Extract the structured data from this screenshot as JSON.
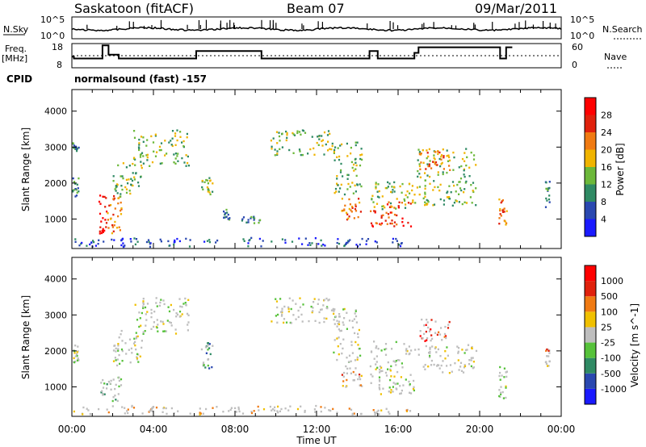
{
  "header": {
    "station": "Saskatoon (fitACF)",
    "beam": "Beam 07",
    "date": "09/Mar/2011"
  },
  "nsky_panel": {
    "left_label": "N.Sky",
    "right_label": "N.Search",
    "left_ticks": [
      "10^5",
      "10^0"
    ],
    "right_ticks": [
      "10^5",
      "10^0"
    ]
  },
  "freq_panel": {
    "left_label_1": "Freq.",
    "left_label_2": "[MHz]",
    "right_label": "Nave",
    "left_ticks": [
      "18",
      "8"
    ],
    "right_ticks": [
      "60",
      "0"
    ]
  },
  "cpid": {
    "label": "CPID",
    "value": "normalsound (fast) -157"
  },
  "chart_data": [
    {
      "type": "heatmap",
      "ylabel": "Slant Range [km]",
      "xlabel": "Time UT",
      "xticks": [
        "00:00",
        "04:00",
        "08:00",
        "12:00",
        "16:00",
        "20:00",
        "00:00"
      ],
      "yticks": [
        "1000",
        "2000",
        "3000",
        "4000"
      ],
      "ylim": [
        180,
        4600
      ],
      "colorbar": {
        "label": "Power [dB]",
        "ticks": [
          "4",
          "8",
          "12",
          "16",
          "20",
          "24",
          "28"
        ],
        "range": [
          0,
          32
        ],
        "colors": [
          "#1a1aff",
          "#2a48b0",
          "#2f8a64",
          "#6cb83a",
          "#f0b400",
          "#f07a12",
          "#e0210c",
          "#ff0000"
        ]
      },
      "echo_regions_hours_km": [
        {
          "t": [
            0.0,
            0.3
          ],
          "r": [
            2900,
            3150
          ],
          "level": 2
        },
        {
          "t": [
            0.0,
            0.3
          ],
          "r": [
            1600,
            2200
          ],
          "level": 2
        },
        {
          "t": [
            1.3,
            1.7
          ],
          "r": [
            600,
            1800
          ],
          "level": 7
        },
        {
          "t": [
            1.7,
            2.4
          ],
          "r": [
            600,
            1700
          ],
          "level": 5
        },
        {
          "t": [
            2.0,
            3.4
          ],
          "r": [
            1600,
            2600
          ],
          "level": 3
        },
        {
          "t": [
            3.0,
            5.7
          ],
          "r": [
            2500,
            3500
          ],
          "level": 3
        },
        {
          "t": [
            6.3,
            6.9
          ],
          "r": [
            1700,
            2200
          ],
          "level": 3
        },
        {
          "t": [
            7.4,
            7.7
          ],
          "r": [
            1000,
            1300
          ],
          "level": 2
        },
        {
          "t": [
            8.3,
            9.2
          ],
          "r": [
            900,
            1100
          ],
          "level": 2
        },
        {
          "t": [
            9.7,
            12.8
          ],
          "r": [
            2800,
            3500
          ],
          "level": 3
        },
        {
          "t": [
            12.8,
            14.2
          ],
          "r": [
            1700,
            3200
          ],
          "level": 3
        },
        {
          "t": [
            13.2,
            14.2
          ],
          "r": [
            1000,
            1600
          ],
          "level": 5
        },
        {
          "t": [
            14.6,
            16.6
          ],
          "r": [
            800,
            1500
          ],
          "level": 6
        },
        {
          "t": [
            14.6,
            16.8
          ],
          "r": [
            1300,
            2100
          ],
          "level": 3
        },
        {
          "t": [
            16.9,
            19.8
          ],
          "r": [
            1400,
            3000
          ],
          "level": 3
        },
        {
          "t": [
            17.0,
            18.5
          ],
          "r": [
            2300,
            2900
          ],
          "level": 5
        },
        {
          "t": [
            20.9,
            21.3
          ],
          "r": [
            800,
            1600
          ],
          "level": 5
        },
        {
          "t": [
            23.2,
            23.4
          ],
          "r": [
            1300,
            2100
          ],
          "level": 2
        },
        {
          "t": [
            0.0,
            16.6
          ],
          "r": [
            250,
            500
          ],
          "level": 1
        }
      ]
    },
    {
      "type": "heatmap",
      "ylabel": "Slant Range [km]",
      "xlabel": "Time UT",
      "xticks": [
        "00:00",
        "04:00",
        "08:00",
        "12:00",
        "16:00",
        "20:00",
        "00:00"
      ],
      "yticks": [
        "1000",
        "2000",
        "3000",
        "4000"
      ],
      "ylim": [
        180,
        4600
      ],
      "colorbar": {
        "label": "Velocity [m s^-1]",
        "ticks": [
          "1000",
          "500",
          "100",
          "25",
          "-25",
          "-100",
          "-500",
          "-1000"
        ],
        "colors": [
          "#1a1aff",
          "#2a48b0",
          "#2f8a64",
          "#56c23a",
          "#bebebe",
          "#f0c000",
          "#f07a12",
          "#e0210c",
          "#ff0000"
        ]
      },
      "echo_regions_hours_km": [
        {
          "t": [
            0.0,
            0.3
          ],
          "r": [
            1600,
            2200
          ],
          "level": 4
        },
        {
          "t": [
            1.3,
            2.4
          ],
          "r": [
            600,
            1300
          ],
          "level": 3
        },
        {
          "t": [
            2.0,
            3.4
          ],
          "r": [
            1600,
            2600
          ],
          "level": 4
        },
        {
          "t": [
            3.0,
            5.7
          ],
          "r": [
            2500,
            3500
          ],
          "level": 4
        },
        {
          "t": [
            6.3,
            6.9
          ],
          "r": [
            1500,
            2300
          ],
          "level": 2
        },
        {
          "t": [
            9.7,
            12.8
          ],
          "r": [
            2800,
            3500
          ],
          "level": 4
        },
        {
          "t": [
            12.8,
            14.2
          ],
          "r": [
            1700,
            3200
          ],
          "level": 4
        },
        {
          "t": [
            13.2,
            14.2
          ],
          "r": [
            1000,
            1600
          ],
          "level": 6
        },
        {
          "t": [
            14.6,
            16.8
          ],
          "r": [
            800,
            2300
          ],
          "level": 4
        },
        {
          "t": [
            16.9,
            19.8
          ],
          "r": [
            1400,
            2200
          ],
          "level": 4
        },
        {
          "t": [
            17.0,
            18.6
          ],
          "r": [
            2300,
            2900
          ],
          "level": 7
        },
        {
          "t": [
            20.9,
            21.3
          ],
          "r": [
            700,
            1600
          ],
          "level": 4
        },
        {
          "t": [
            23.2,
            23.4
          ],
          "r": [
            1500,
            2100
          ],
          "level": 6
        },
        {
          "t": [
            0.0,
            16.6
          ],
          "r": [
            250,
            500
          ],
          "level": 5
        }
      ]
    }
  ],
  "freq_steps_hours_mhz": [
    {
      "t": [
        0.0,
        0.1
      ],
      "f": 12
    },
    {
      "t": [
        0.1,
        1.5
      ],
      "f": 11
    },
    {
      "t": [
        1.5,
        1.8
      ],
      "f": 18
    },
    {
      "t": [
        1.8,
        2.3
      ],
      "f": 13
    },
    {
      "t": [
        2.3,
        6.1
      ],
      "f": 11
    },
    {
      "t": [
        6.1,
        9.3
      ],
      "f": 15
    },
    {
      "t": [
        9.3,
        14.6
      ],
      "f": 11
    },
    {
      "t": [
        14.6,
        15.0
      ],
      "f": 15
    },
    {
      "t": [
        15.0,
        16.8
      ],
      "f": 11
    },
    {
      "t": [
        16.8,
        17.0
      ],
      "f": 14
    },
    {
      "t": [
        17.0,
        21.0
      ],
      "f": 17
    },
    {
      "t": [
        21.0,
        21.3
      ],
      "f": 11
    },
    {
      "t": [
        21.3,
        21.6
      ],
      "f": 17
    }
  ],
  "nave_level": 25,
  "nsky_level": 0.6
}
